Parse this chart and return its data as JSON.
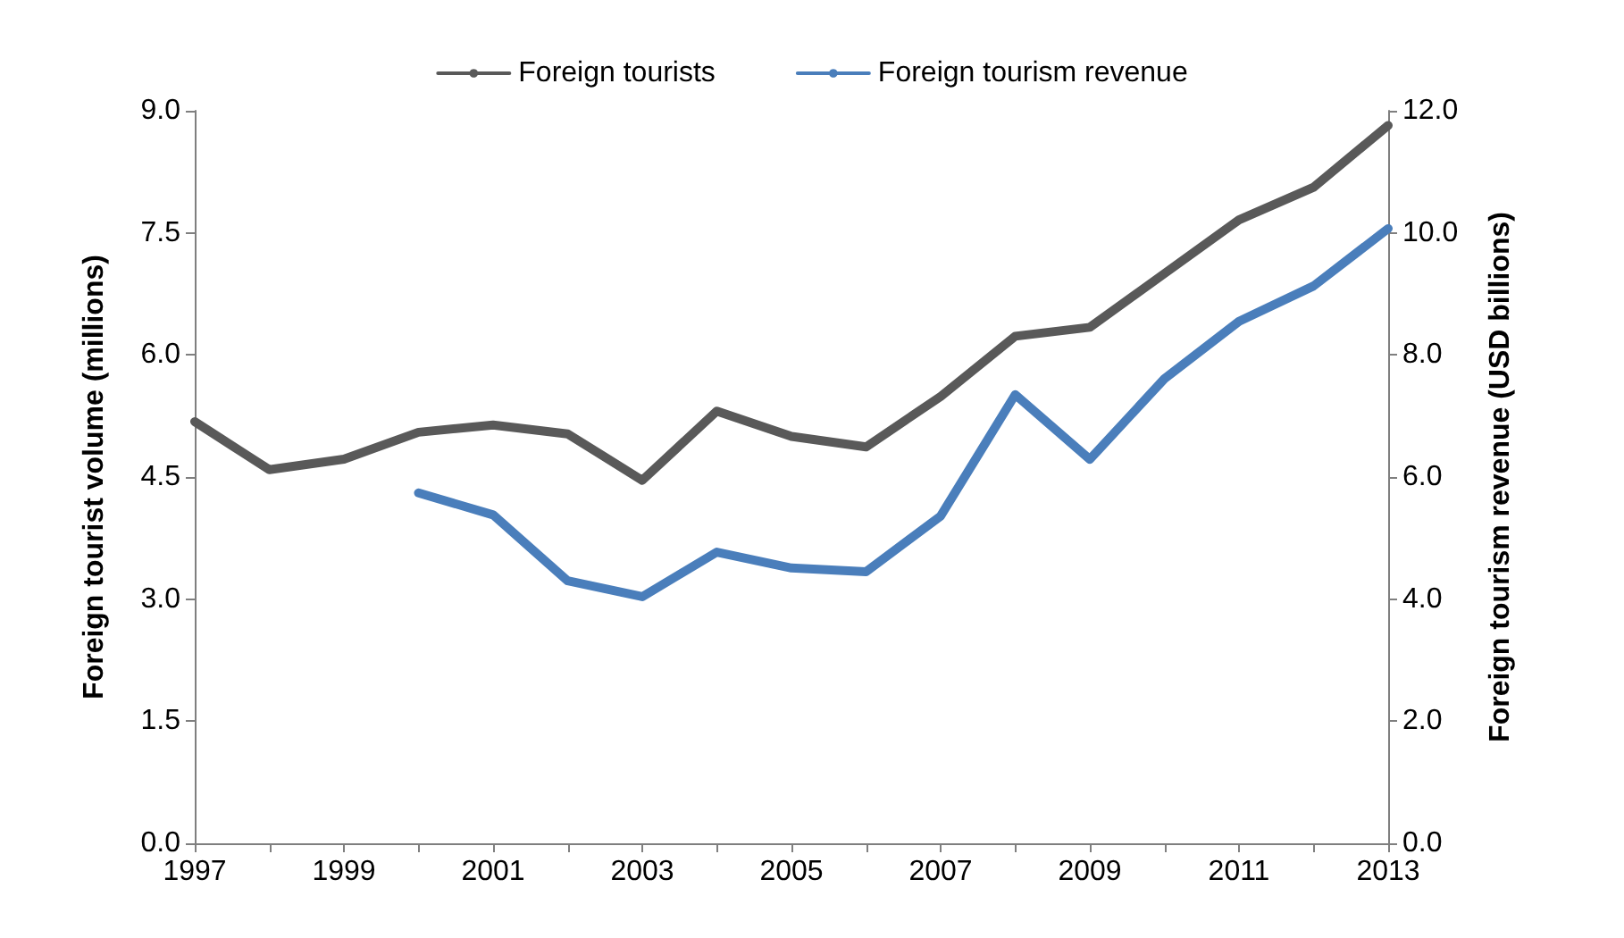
{
  "chart_data": {
    "type": "line",
    "categories": [
      "1997",
      null,
      "1999",
      null,
      "2001",
      null,
      "2003",
      null,
      "2005",
      null,
      "2007",
      null,
      "2009",
      null,
      "2011",
      null,
      "2013"
    ],
    "ylabel": "Foreign tourist volume (millions)",
    "y2label": "Foreign tourism revenue (USD billions)",
    "ylim": [
      0,
      9
    ],
    "yticks": [
      {
        "value": 0,
        "label": "0.0"
      },
      {
        "value": 1.5,
        "label": "1.5"
      },
      {
        "value": 3,
        "label": "3.0"
      },
      {
        "value": 4.5,
        "label": "4.5"
      },
      {
        "value": 6,
        "label": "6.0"
      },
      {
        "value": 7.5,
        "label": "7.5"
      },
      {
        "value": 9,
        "label": "9.0"
      }
    ],
    "y2lim": [
      0,
      12
    ],
    "y2ticks": [
      {
        "value": 0,
        "label": "0.0"
      },
      {
        "value": 2,
        "label": "2.0"
      },
      {
        "value": 4,
        "label": "4.0"
      },
      {
        "value": 6,
        "label": "6.0"
      },
      {
        "value": 8,
        "label": "8.0"
      },
      {
        "value": 10,
        "label": "10.0"
      },
      {
        "value": 12,
        "label": "12.0"
      }
    ],
    "grid": false,
    "legend": "top",
    "marker": "none",
    "line_style": "solid",
    "series": [
      {
        "name": "Foreign tourists",
        "color": "#595959",
        "values": [
          5.18,
          4.59,
          4.72,
          5.05,
          5.14,
          5.03,
          4.46,
          5.31,
          5.0,
          4.87,
          5.49,
          6.23,
          6.34,
          7.0,
          7.66,
          8.06,
          8.82
        ]
      },
      {
        "name": "Foreign tourism revenue",
        "color": "#4a7ebb",
        "axis": "y2",
        "values": [
          null,
          null,
          null,
          5.74,
          5.38,
          4.3,
          4.04,
          4.77,
          4.51,
          4.45,
          5.36,
          7.35,
          6.29,
          7.61,
          8.55,
          9.13,
          10.07
        ]
      }
    ]
  }
}
